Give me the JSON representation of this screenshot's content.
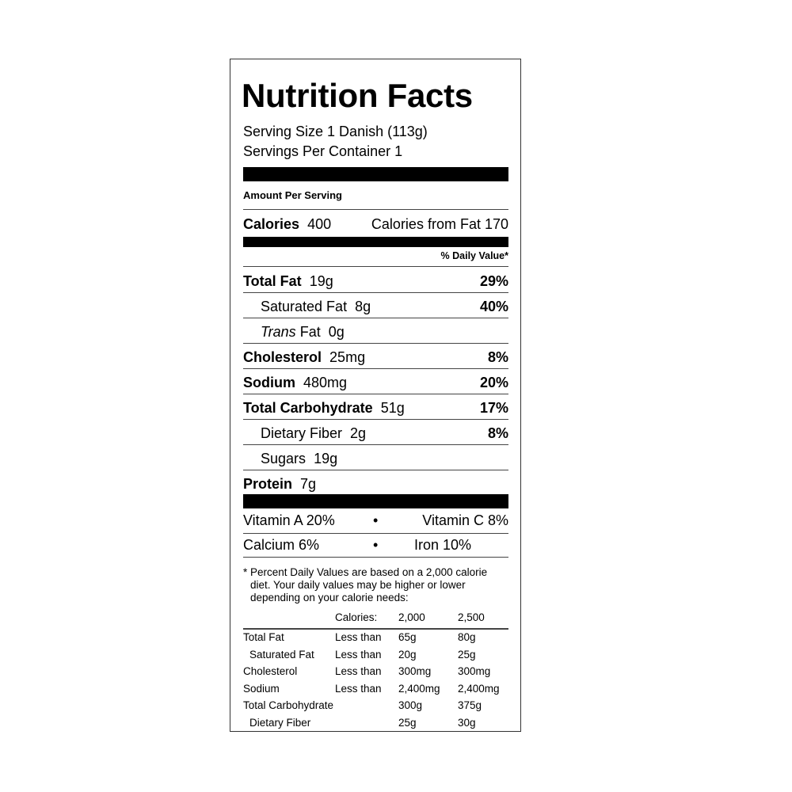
{
  "title": "Nutrition Facts",
  "serving_size": "Serving Size 1 Danish (113g)",
  "servings_per_container": "Servings Per Container 1",
  "amount_per_serving": "Amount Per Serving",
  "calories": {
    "label": "Calories",
    "value": "400",
    "from_fat": "Calories from Fat 170"
  },
  "daily_value_header": "% Daily Value*",
  "nutrients": [
    {
      "label": "Total Fat",
      "amount": "19g",
      "dv": "29%"
    },
    {
      "label": "Saturated Fat",
      "amount": "8g",
      "dv": "40%"
    },
    {
      "label": "Trans",
      "label_suffix": "Fat",
      "amount": "0g",
      "dv": ""
    },
    {
      "label": "Cholesterol",
      "amount": "25mg",
      "dv": "8%"
    },
    {
      "label": "Sodium",
      "amount": "480mg",
      "dv": "20%"
    },
    {
      "label": "Total Carbohydrate",
      "amount": "51g",
      "dv": "17%"
    },
    {
      "label": "Dietary Fiber",
      "amount": "2g",
      "dv": "8%"
    },
    {
      "label": "Sugars",
      "amount": "19g",
      "dv": ""
    },
    {
      "label": "Protein",
      "amount": "7g",
      "dv": ""
    }
  ],
  "vitamins": [
    {
      "left": "Vitamin A 20%",
      "bullet": "•",
      "right": "Vitamin C 8%"
    },
    {
      "left": "Calcium 6%",
      "bullet": "•",
      "right": "Iron 10%"
    }
  ],
  "footnote": [
    "* Percent Daily Values are based on a 2,000 calorie",
    "diet. Your daily values may be higher or lower",
    "depending on your calorie needs:"
  ],
  "dv_table": {
    "header": [
      "",
      "Calories:",
      "2,000",
      "2,500"
    ],
    "rows": [
      [
        "Total Fat",
        "Less than",
        "65g",
        "80g"
      ],
      [
        "  Saturated Fat",
        "Less than",
        "20g",
        "25g"
      ],
      [
        "Cholesterol",
        "Less than",
        "300mg",
        "300mg"
      ],
      [
        "Sodium",
        "Less than",
        "2,400mg",
        "2,400mg"
      ],
      [
        "Total Carbohydrate",
        "",
        "300g",
        "375g"
      ],
      [
        "  Dietary Fiber",
        "",
        "25g",
        "30g"
      ]
    ]
  }
}
